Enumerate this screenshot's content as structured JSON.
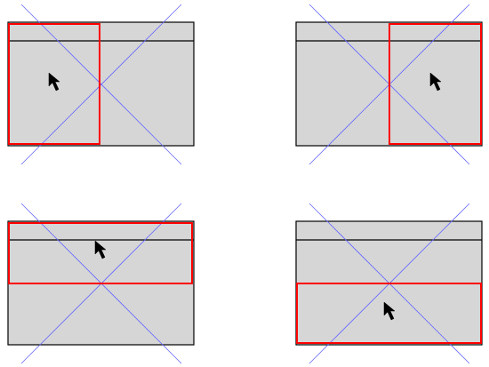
{
  "colors": {
    "background": "#ffffff",
    "window_fill": "#d6d6d6",
    "window_stroke": "#000000",
    "diagonal": "#6666ff",
    "snap_zone": "#ff0000",
    "cursor": "#000000"
  },
  "panels": [
    {
      "id": "top-left",
      "snap_zone": "left-half",
      "cursor_icon": "arrow-cursor-icon"
    },
    {
      "id": "top-right",
      "snap_zone": "right-half",
      "cursor_icon": "arrow-cursor-icon"
    },
    {
      "id": "bottom-left",
      "snap_zone": "top-half",
      "cursor_icon": "arrow-cursor-icon"
    },
    {
      "id": "bottom-right",
      "snap_zone": "bottom-half",
      "cursor_icon": "arrow-cursor-icon"
    }
  ]
}
